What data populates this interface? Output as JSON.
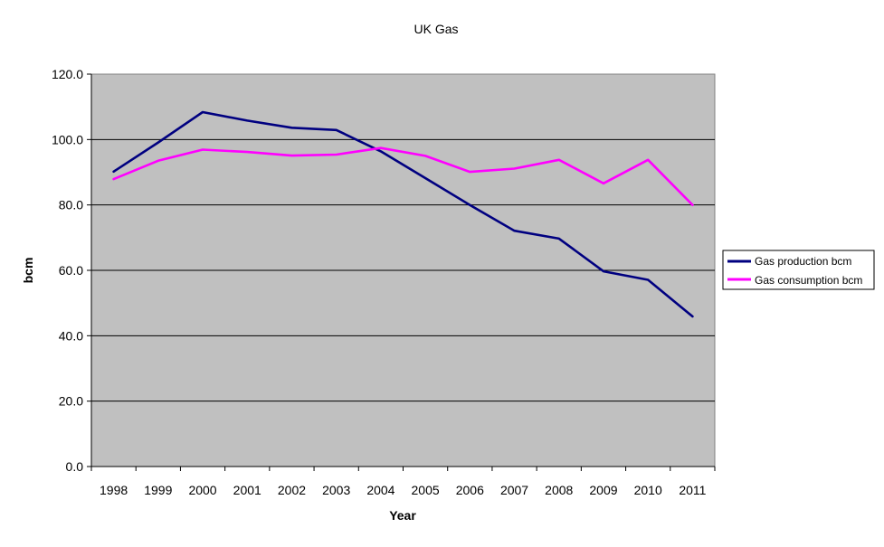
{
  "chart_data": {
    "type": "line",
    "title": "UK Gas",
    "xlabel": "Year",
    "ylabel": "bcm",
    "categories": [
      "1998",
      "1999",
      "2000",
      "2001",
      "2002",
      "2003",
      "2004",
      "2005",
      "2006",
      "2007",
      "2008",
      "2009",
      "2010",
      "2011"
    ],
    "ylim": [
      0,
      120
    ],
    "yticks": [
      "0.0",
      "20.0",
      "40.0",
      "60.0",
      "80.0",
      "100.0",
      "120.0"
    ],
    "grid": true,
    "legend_position": "right",
    "plot_background": "#c0c0c0",
    "series": [
      {
        "name": "Gas production bcm",
        "color": "#000080",
        "values": [
          90.2,
          99.1,
          108.4,
          105.8,
          103.6,
          102.9,
          96.4,
          88.2,
          80.0,
          72.1,
          69.7,
          59.7,
          57.1,
          45.9
        ]
      },
      {
        "name": "Gas consumption bcm",
        "color": "#ff00ff",
        "values": [
          87.9,
          93.5,
          96.9,
          96.2,
          95.1,
          95.4,
          97.4,
          95.0,
          90.1,
          91.1,
          93.8,
          86.6,
          93.8,
          80.0
        ]
      }
    ]
  }
}
